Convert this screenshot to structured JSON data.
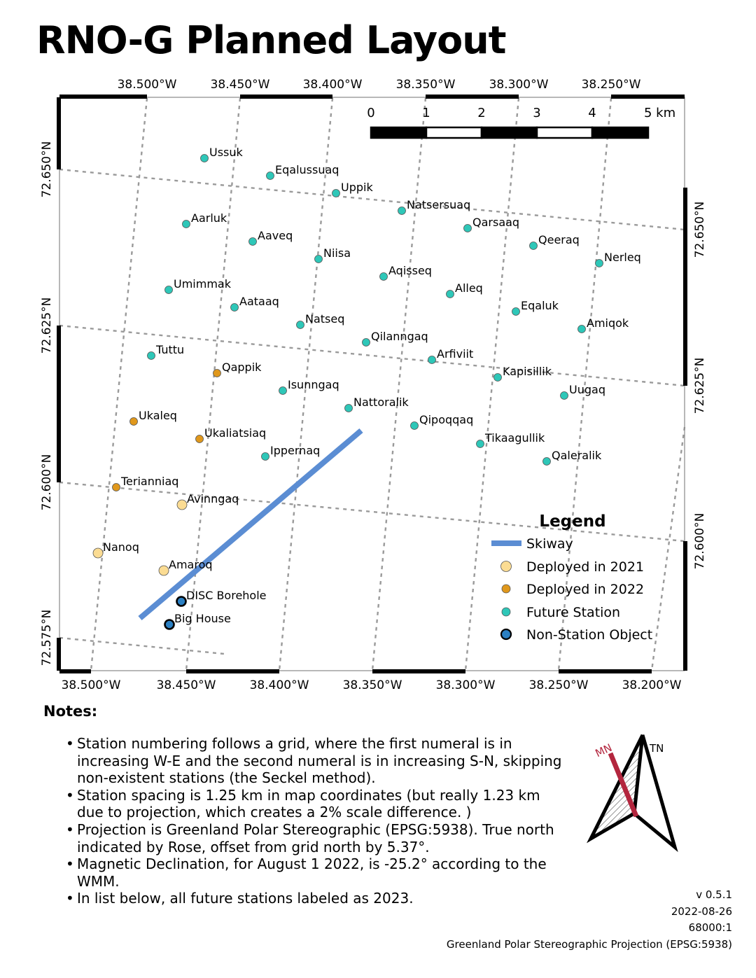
{
  "title": "RNO-G Planned Layout",
  "map": {
    "top_lon_labels": [
      "38.500°W",
      "38.450°W",
      "38.400°W",
      "38.350°W",
      "38.300°W",
      "38.250°W"
    ],
    "bottom_lon_labels": [
      "38.500°W",
      "38.450°W",
      "38.400°W",
      "38.350°W",
      "38.300°W",
      "38.250°W",
      "38.200°W"
    ],
    "left_lat_labels": [
      "72.650°N",
      "72.625°N",
      "72.600°N",
      "72.575°N"
    ],
    "right_lat_labels": [
      "72.650°N",
      "72.625°N",
      "72.600°N"
    ],
    "scale_bar": {
      "ticks": [
        "0",
        "1",
        "2",
        "3",
        "4",
        "5 km"
      ]
    },
    "colors": {
      "deployed_2021": "#fbdc93",
      "deployed_2022": "#e0981c",
      "future": "#2ec7b8",
      "non_station": "#2b80c3",
      "skiway": "#5b8dd3"
    },
    "stations": [
      {
        "name": "Ussuk",
        "status": "future"
      },
      {
        "name": "Eqalussuaq",
        "status": "future"
      },
      {
        "name": "Uppik",
        "status": "future"
      },
      {
        "name": "Natsersuaq",
        "status": "future"
      },
      {
        "name": "Qarsaaq",
        "status": "future"
      },
      {
        "name": "Qeeraq",
        "status": "future"
      },
      {
        "name": "Nerleq",
        "status": "future"
      },
      {
        "name": "Aarluk",
        "status": "future"
      },
      {
        "name": "Aaveq",
        "status": "future"
      },
      {
        "name": "Niisa",
        "status": "future"
      },
      {
        "name": "Aqisseq",
        "status": "future"
      },
      {
        "name": "Alleq",
        "status": "future"
      },
      {
        "name": "Eqaluk",
        "status": "future"
      },
      {
        "name": "Amiqok",
        "status": "future"
      },
      {
        "name": "Umimmak",
        "status": "future"
      },
      {
        "name": "Aataaq",
        "status": "future"
      },
      {
        "name": "Natseq",
        "status": "future"
      },
      {
        "name": "Qilanngaq",
        "status": "future"
      },
      {
        "name": "Arfiviit",
        "status": "future"
      },
      {
        "name": "Kapisillik",
        "status": "future"
      },
      {
        "name": "Uugaq",
        "status": "future"
      },
      {
        "name": "Tuttu",
        "status": "future"
      },
      {
        "name": "Qappik",
        "status": "deployed_2022"
      },
      {
        "name": "Isunngaq",
        "status": "future"
      },
      {
        "name": "Nattoralik",
        "status": "future"
      },
      {
        "name": "Qipoqqaq",
        "status": "future"
      },
      {
        "name": "Tikaagullik",
        "status": "future"
      },
      {
        "name": "Qaleralik",
        "status": "future"
      },
      {
        "name": "Ukaleq",
        "status": "deployed_2022"
      },
      {
        "name": "Ukaliatsiaq",
        "status": "deployed_2022"
      },
      {
        "name": "Ippernaq",
        "status": "future"
      },
      {
        "name": "Terianniaq",
        "status": "deployed_2022"
      },
      {
        "name": "Avinngaq",
        "status": "deployed_2021"
      },
      {
        "name": "Nanoq",
        "status": "deployed_2021"
      },
      {
        "name": "Amaroq",
        "status": "deployed_2021"
      },
      {
        "name": "DISC Borehole",
        "status": "non_station"
      },
      {
        "name": "Big House",
        "status": "non_station"
      }
    ],
    "legend": {
      "title": "Legend",
      "items": [
        {
          "label": "Skiway",
          "kind": "line"
        },
        {
          "label": "Deployed in  2021",
          "kind": "deployed_2021"
        },
        {
          "label": "Deployed in 2022",
          "kind": "deployed_2022"
        },
        {
          "label": "Future Station",
          "kind": "future"
        },
        {
          "label": "Non-Station Object",
          "kind": "non_station"
        }
      ]
    }
  },
  "notes": {
    "heading": "Notes:",
    "items": [
      "Station numbering follows a grid, where the first numeral is in increasing W-E and the second numeral is in increasing S-N, skipping non-existent stations (the Seckel method).",
      "Station spacing is 1.25 km in map coordinates (but really 1.23 km due to projection, which creates a 2% scale difference. )",
      "Projection is Greenland Polar Stereographic (EPSG:5938). True north indicated by Rose, offset from grid north by 5.37°.",
      "Magnetic Declination, for August 1 2022, is -25.2° according to the WMM.",
      "In list below, all future stations labeled as 2023."
    ]
  },
  "rose": {
    "mn_label": "MN",
    "tn_label": "TN",
    "mn_color": "#b3263e"
  },
  "meta": {
    "version": "v 0.5.1",
    "date": "2022-08-26",
    "scale": "68000:1",
    "projection": "Greenland Polar Stereographic Projection (EPSG:5938)"
  }
}
